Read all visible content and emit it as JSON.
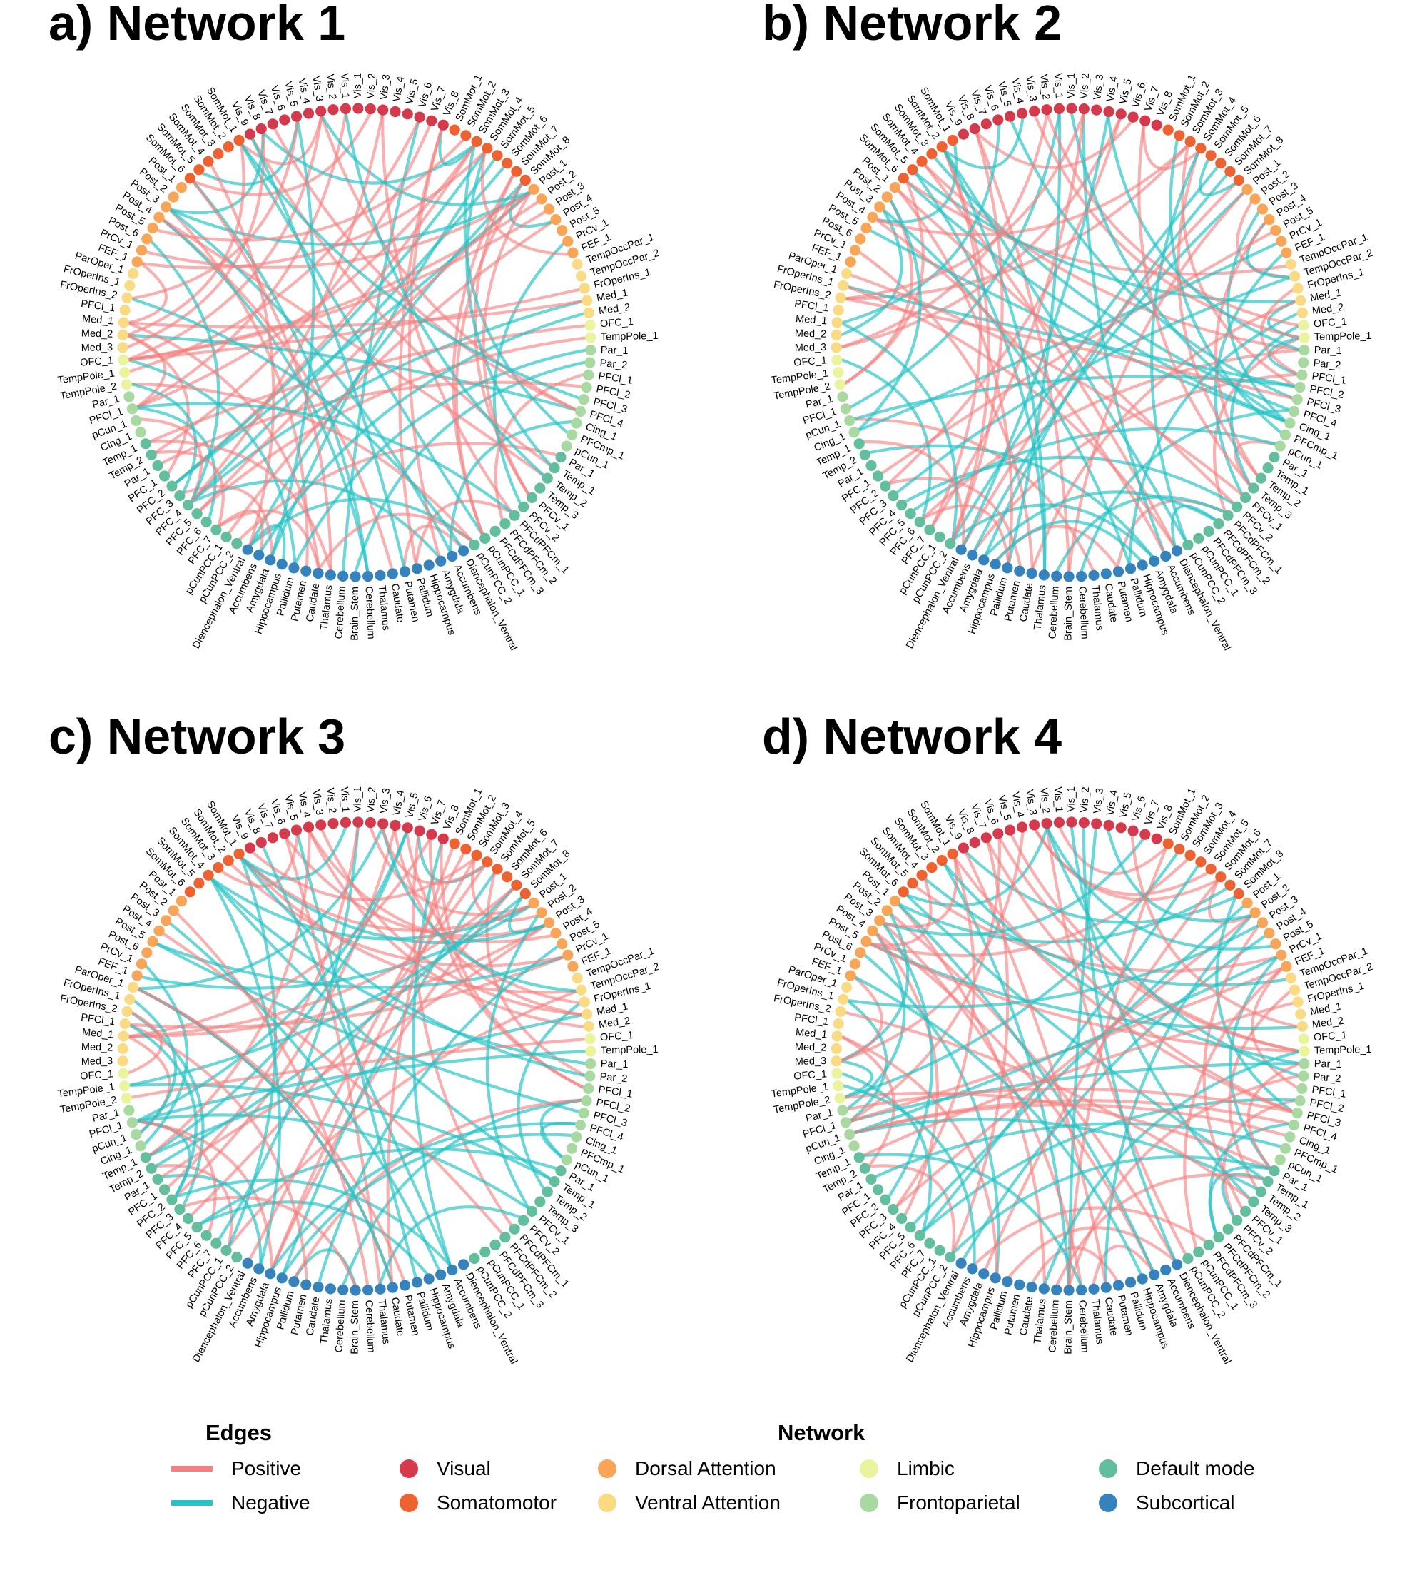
{
  "panels": [
    {
      "id": "a",
      "title": "a) Network 1",
      "seed": 11
    },
    {
      "id": "b",
      "title": "b) Network 2",
      "seed": 29
    },
    {
      "id": "c",
      "title": "c) Network 3",
      "seed": 47
    },
    {
      "id": "d",
      "title": "d) Network 4",
      "seed": 83
    }
  ],
  "nodes": [
    {
      "label": "Vis_1",
      "network": "Visual"
    },
    {
      "label": "Vis_2",
      "network": "Visual"
    },
    {
      "label": "Vis_3",
      "network": "Visual"
    },
    {
      "label": "Vis_4",
      "network": "Visual"
    },
    {
      "label": "Vis_5",
      "network": "Visual"
    },
    {
      "label": "Vis_6",
      "network": "Visual"
    },
    {
      "label": "Vis_7",
      "network": "Visual"
    },
    {
      "label": "Vis_8",
      "network": "Visual"
    },
    {
      "label": "SomMot_1",
      "network": "Somatomotor"
    },
    {
      "label": "SomMot_2",
      "network": "Somatomotor"
    },
    {
      "label": "SomMot_3",
      "network": "Somatomotor"
    },
    {
      "label": "SomMot_4",
      "network": "Somatomotor"
    },
    {
      "label": "SomMot_5",
      "network": "Somatomotor"
    },
    {
      "label": "SomMot_6",
      "network": "Somatomotor"
    },
    {
      "label": "SomMot_7",
      "network": "Somatomotor"
    },
    {
      "label": "SomMot_8",
      "network": "Somatomotor"
    },
    {
      "label": "Post_1",
      "network": "Dorsal Attention"
    },
    {
      "label": "Post_2",
      "network": "Dorsal Attention"
    },
    {
      "label": "Post_3",
      "network": "Dorsal Attention"
    },
    {
      "label": "Post_4",
      "network": "Dorsal Attention"
    },
    {
      "label": "Post_5",
      "network": "Dorsal Attention"
    },
    {
      "label": "PrCv_1",
      "network": "Dorsal Attention"
    },
    {
      "label": "FEF_1",
      "network": "Dorsal Attention"
    },
    {
      "label": "TempOccPar_1",
      "network": "Ventral Attention"
    },
    {
      "label": "TempOccPar_2",
      "network": "Ventral Attention"
    },
    {
      "label": "FrOperIns_1",
      "network": "Ventral Attention"
    },
    {
      "label": "Med_1",
      "network": "Ventral Attention"
    },
    {
      "label": "Med_2",
      "network": "Ventral Attention"
    },
    {
      "label": "OFC_1",
      "network": "Limbic"
    },
    {
      "label": "TempPole_1",
      "network": "Limbic"
    },
    {
      "label": "Par_1",
      "network": "Frontoparietal"
    },
    {
      "label": "Par_2",
      "network": "Frontoparietal"
    },
    {
      "label": "PFCl_1",
      "network": "Frontoparietal"
    },
    {
      "label": "PFCl_2",
      "network": "Frontoparietal"
    },
    {
      "label": "PFCl_3",
      "network": "Frontoparietal"
    },
    {
      "label": "PFCl_4",
      "network": "Frontoparietal"
    },
    {
      "label": "Cing_1",
      "network": "Frontoparietal"
    },
    {
      "label": "PFCmp_1",
      "network": "Frontoparietal"
    },
    {
      "label": "pCun_1",
      "network": "Frontoparietal"
    },
    {
      "label": "Par_1",
      "network": "Default mode"
    },
    {
      "label": "Temp_1",
      "network": "Default mode"
    },
    {
      "label": "Temp_2",
      "network": "Default mode"
    },
    {
      "label": "Temp_3",
      "network": "Default mode"
    },
    {
      "label": "PFCv_1",
      "network": "Default mode"
    },
    {
      "label": "PFCv_2",
      "network": "Default mode"
    },
    {
      "label": "PFCdPFCm_1",
      "network": "Default mode"
    },
    {
      "label": "PFCdPFCm_2",
      "network": "Default mode"
    },
    {
      "label": "PFCdPFCm_3",
      "network": "Default mode"
    },
    {
      "label": "pCunPCC_1",
      "network": "Default mode"
    },
    {
      "label": "pCunPCC_2",
      "network": "Default mode"
    },
    {
      "label": "Diencephalon_Ventral",
      "network": "Subcortical"
    },
    {
      "label": "Accumbens",
      "network": "Subcortical"
    },
    {
      "label": "Amygdala",
      "network": "Subcortical"
    },
    {
      "label": "Hippocampus",
      "network": "Subcortical"
    },
    {
      "label": "Pallidum",
      "network": "Subcortical"
    },
    {
      "label": "Putamen",
      "network": "Subcortical"
    },
    {
      "label": "Caudate",
      "network": "Subcortical"
    },
    {
      "label": "Thalamus",
      "network": "Subcortical"
    },
    {
      "label": "Cerebellum",
      "network": "Subcortical"
    },
    {
      "label": "Brain_Stem",
      "network": "Subcortical"
    },
    {
      "label": "Cerebellum",
      "network": "Subcortical"
    },
    {
      "label": "Thalamus",
      "network": "Subcortical"
    },
    {
      "label": "Caudate",
      "network": "Subcortical"
    },
    {
      "label": "Putamen",
      "network": "Subcortical"
    },
    {
      "label": "Pallidum",
      "network": "Subcortical"
    },
    {
      "label": "Hippocampus",
      "network": "Subcortical"
    },
    {
      "label": "Amygdala",
      "network": "Subcortical"
    },
    {
      "label": "Accumbens",
      "network": "Subcortical"
    },
    {
      "label": "Diencephalon_Ventral",
      "network": "Subcortical"
    },
    {
      "label": "pCunPCC_2",
      "network": "Default mode"
    },
    {
      "label": "pCunPCC_1",
      "network": "Default mode"
    },
    {
      "label": "PFC_7",
      "network": "Default mode"
    },
    {
      "label": "PFC_6",
      "network": "Default mode"
    },
    {
      "label": "PFC_5",
      "network": "Default mode"
    },
    {
      "label": "PFC_4",
      "network": "Default mode"
    },
    {
      "label": "PFC_3",
      "network": "Default mode"
    },
    {
      "label": "PFC_2",
      "network": "Default mode"
    },
    {
      "label": "PFC_1",
      "network": "Default mode"
    },
    {
      "label": "Par_1",
      "network": "Default mode"
    },
    {
      "label": "Temp_2",
      "network": "Default mode"
    },
    {
      "label": "Temp_1",
      "network": "Default mode"
    },
    {
      "label": "Cing_1",
      "network": "Frontoparietal"
    },
    {
      "label": "pCun_1",
      "network": "Frontoparietal"
    },
    {
      "label": "PFCl_1",
      "network": "Frontoparietal"
    },
    {
      "label": "Par_1",
      "network": "Frontoparietal"
    },
    {
      "label": "TempPole_2",
      "network": "Limbic"
    },
    {
      "label": "TempPole_1",
      "network": "Limbic"
    },
    {
      "label": "OFC_1",
      "network": "Limbic"
    },
    {
      "label": "Med_3",
      "network": "Ventral Attention"
    },
    {
      "label": "Med_2",
      "network": "Ventral Attention"
    },
    {
      "label": "Med_1",
      "network": "Ventral Attention"
    },
    {
      "label": "PFCl_1",
      "network": "Ventral Attention"
    },
    {
      "label": "FrOperIns_2",
      "network": "Ventral Attention"
    },
    {
      "label": "FrOperIns_1",
      "network": "Ventral Attention"
    },
    {
      "label": "ParOper_1",
      "network": "Ventral Attention"
    },
    {
      "label": "FEF_1",
      "network": "Dorsal Attention"
    },
    {
      "label": "PrCv_1",
      "network": "Dorsal Attention"
    },
    {
      "label": "Post_6",
      "network": "Dorsal Attention"
    },
    {
      "label": "Post_5",
      "network": "Dorsal Attention"
    },
    {
      "label": "Post_4",
      "network": "Dorsal Attention"
    },
    {
      "label": "Post_3",
      "network": "Dorsal Attention"
    },
    {
      "label": "Post_2",
      "network": "Dorsal Attention"
    },
    {
      "label": "Post_1",
      "network": "Dorsal Attention"
    },
    {
      "label": "SomMot_6",
      "network": "Somatomotor"
    },
    {
      "label": "SomMot_5",
      "network": "Somatomotor"
    },
    {
      "label": "SomMot_4",
      "network": "Somatomotor"
    },
    {
      "label": "SomMot_3",
      "network": "Somatomotor"
    },
    {
      "label": "SomMot_2",
      "network": "Somatomotor"
    },
    {
      "label": "SomMot_1",
      "network": "Somatomotor"
    },
    {
      "label": "Vis_9",
      "network": "Visual"
    },
    {
      "label": "Vis_8",
      "network": "Visual"
    },
    {
      "label": "Vis_7",
      "network": "Visual"
    },
    {
      "label": "Vis_6",
      "network": "Visual"
    },
    {
      "label": "Vis_5",
      "network": "Visual"
    },
    {
      "label": "Vis_4",
      "network": "Visual"
    },
    {
      "label": "Vis_3",
      "network": "Visual"
    },
    {
      "label": "Vis_2",
      "network": "Visual"
    },
    {
      "label": "Vis_1",
      "network": "Visual"
    }
  ],
  "network_colors": {
    "Visual": "#d43a4c",
    "Somatomotor": "#ee6232",
    "Dorsal Attention": "#f8a558",
    "Ventral Attention": "#fadb83",
    "Limbic": "#e9f49c",
    "Frontoparietal": "#a7d9a0",
    "Default mode": "#62be9c",
    "Subcortical": "#3582bd"
  },
  "edge_colors": {
    "Positive": "#f47f7f",
    "Negative": "#27c2c6"
  },
  "legend": {
    "edges_title": "Edges",
    "edges": [
      {
        "name": "positive",
        "label": "Positive"
      },
      {
        "name": "negative",
        "label": "Negative"
      }
    ],
    "network_title": "Network",
    "networks": [
      {
        "key": "Visual",
        "label": "Visual"
      },
      {
        "key": "Somatomotor",
        "label": "Somatomotor"
      },
      {
        "key": "Dorsal Attention",
        "label": "Dorsal Attention"
      },
      {
        "key": "Ventral Attention",
        "label": "Ventral Attention"
      },
      {
        "key": "Limbic",
        "label": "Limbic"
      },
      {
        "key": "Frontoparietal",
        "label": "Frontoparietal"
      },
      {
        "key": "Default mode",
        "label": "Default mode"
      },
      {
        "key": "Subcortical",
        "label": "Subcortical"
      }
    ]
  }
}
